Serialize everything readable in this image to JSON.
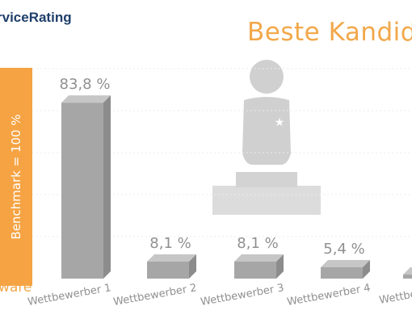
{
  "brand": "rviceRating",
  "headline": "Beste Kandida",
  "benchmark_label": "Benchmark = 100 %",
  "ware_label": "ware",
  "colors": {
    "accent_orange": "#f5a343",
    "headline_orange": "#f2a84a",
    "bar_gray": "#a6a6a6",
    "label_gray": "#909090",
    "brand_blue": "#1f3f6b"
  },
  "icons": [
    "star-icon",
    "podium-icon"
  ],
  "chart_data": {
    "type": "bar",
    "categories": [
      "Wettbewerber 1",
      "Wettbewerber 2",
      "Wettbewerber 3",
      "Wettbewerber 4",
      "Wettbewerber"
    ],
    "values": [
      83.8,
      8.1,
      8.1,
      5.4,
      null
    ],
    "data_labels": [
      "83,8 %",
      "8,1 %",
      "8,1 %",
      "5,4 %",
      ""
    ],
    "ylim": [
      0,
      100
    ],
    "grid": true
  }
}
